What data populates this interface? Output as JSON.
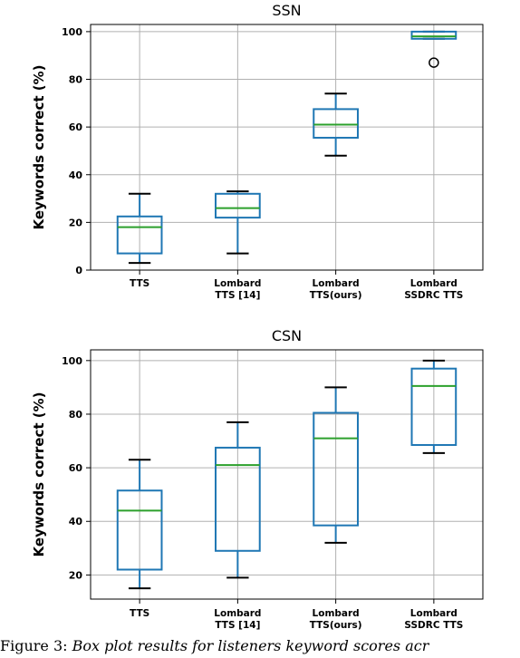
{
  "chart_data": [
    {
      "type": "box",
      "title": "SSN",
      "ylabel": "Keywords correct (%)",
      "ylim": [
        0,
        103
      ],
      "yticks": [
        0,
        20,
        40,
        60,
        80,
        100
      ],
      "grid": true,
      "categories": [
        "TTS",
        "Lombard\nTTS [14]",
        "Lombard\nTTS(ours)",
        "Lombard\nSSDRC TTS"
      ],
      "boxes": [
        {
          "whisker_low": 3,
          "q1": 7,
          "median": 18,
          "q3": 22.5,
          "whisker_high": 32,
          "outliers": []
        },
        {
          "whisker_low": 7,
          "q1": 22,
          "median": 26,
          "q3": 32,
          "whisker_high": 33,
          "outliers": []
        },
        {
          "whisker_low": 48,
          "q1": 55.5,
          "median": 61,
          "q3": 67.5,
          "whisker_high": 74,
          "outliers": []
        },
        {
          "whisker_low": 97,
          "q1": 97,
          "median": 98,
          "q3": 100,
          "whisker_high": 100,
          "outliers": [
            87
          ]
        }
      ]
    },
    {
      "type": "box",
      "title": "CSN",
      "ylabel": "Keywords correct (%)",
      "ylim": [
        11,
        104
      ],
      "yticks": [
        20,
        40,
        60,
        80,
        100
      ],
      "grid": true,
      "categories": [
        "TTS",
        "Lombard\nTTS [14]",
        "Lombard\nTTS(ours)",
        "Lombard\nSSDRC TTS"
      ],
      "boxes": [
        {
          "whisker_low": 15,
          "q1": 22,
          "median": 44,
          "q3": 51.5,
          "whisker_high": 63,
          "outliers": []
        },
        {
          "whisker_low": 19,
          "q1": 29,
          "median": 61,
          "q3": 67.5,
          "whisker_high": 77,
          "outliers": []
        },
        {
          "whisker_low": 32,
          "q1": 38.5,
          "median": 71,
          "q3": 80.5,
          "whisker_high": 90,
          "outliers": []
        },
        {
          "whisker_low": 65.5,
          "q1": 68.5,
          "median": 90.5,
          "q3": 97,
          "whisker_high": 100,
          "outliers": []
        }
      ]
    }
  ],
  "caption": {
    "label": "Figure 3:",
    "text": "Box plot results for listeners keyword scores acr"
  },
  "colors": {
    "box": "#1f77b4",
    "median": "#2ca02c",
    "grid": "#b0b0b0",
    "whisker_cap": "#000000"
  }
}
